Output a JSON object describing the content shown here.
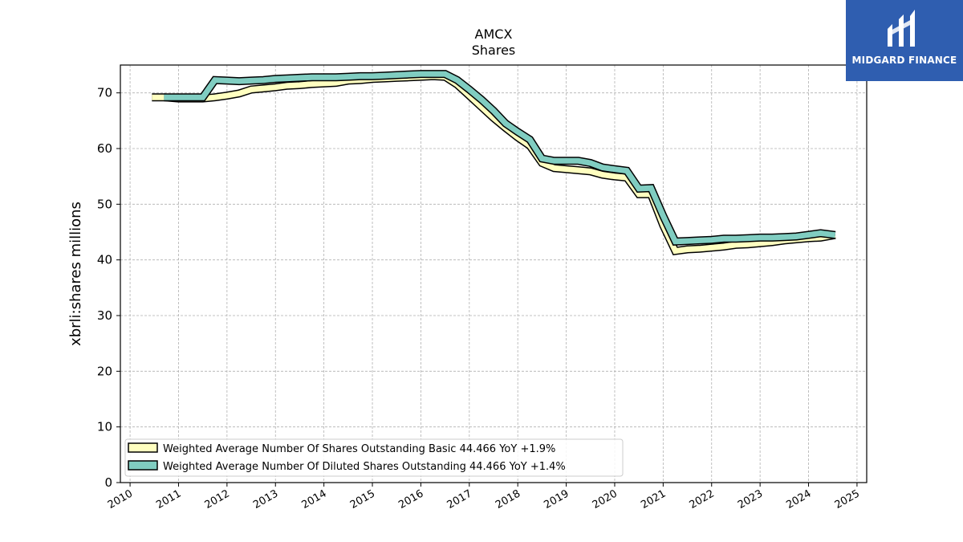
{
  "logo": {
    "text": "MIDGARD FINANCE"
  },
  "chart_data": {
    "type": "line",
    "title": "AMCX",
    "subtitle": "Shares",
    "ylabel": "xbrli:shares millions",
    "xlabel": "",
    "xlim": [
      2009.8,
      2025.2
    ],
    "ylim": [
      0,
      75
    ],
    "xticks": [
      2010,
      2011,
      2012,
      2013,
      2014,
      2015,
      2016,
      2017,
      2018,
      2019,
      2020,
      2021,
      2022,
      2023,
      2024,
      2025
    ],
    "yticks": [
      0,
      10,
      20,
      30,
      40,
      50,
      60,
      70
    ],
    "grid": true,
    "legend_position": "lower-left",
    "series": [
      {
        "name": "Weighted Average Number Of Shares Outstanding Basic  44.466 YoY +1.9%",
        "color": "#ffffc0",
        "points": [
          [
            2010.45,
            69.2
          ],
          [
            2010.7,
            69.2
          ],
          [
            2011.0,
            69.0
          ],
          [
            2011.5,
            69.0
          ],
          [
            2011.75,
            69.2
          ],
          [
            2012.0,
            69.5
          ],
          [
            2012.25,
            69.9
          ],
          [
            2012.5,
            70.6
          ],
          [
            2012.75,
            70.8
          ],
          [
            2013.0,
            71.0
          ],
          [
            2013.25,
            71.3
          ],
          [
            2013.5,
            71.4
          ],
          [
            2013.75,
            71.6
          ],
          [
            2014.0,
            71.7
          ],
          [
            2014.25,
            71.8
          ],
          [
            2014.5,
            72.2
          ],
          [
            2014.75,
            72.3
          ],
          [
            2015.0,
            72.5
          ],
          [
            2015.25,
            72.6
          ],
          [
            2015.5,
            72.7
          ],
          [
            2015.75,
            72.8
          ],
          [
            2016.0,
            72.9
          ],
          [
            2016.25,
            73.0
          ],
          [
            2016.5,
            72.9
          ],
          [
            2016.75,
            71.5
          ],
          [
            2017.0,
            69.5
          ],
          [
            2017.25,
            67.5
          ],
          [
            2017.5,
            65.5
          ],
          [
            2017.75,
            63.7
          ],
          [
            2018.0,
            62.0
          ],
          [
            2018.25,
            60.5
          ],
          [
            2018.5,
            57.4
          ],
          [
            2018.75,
            56.5
          ],
          [
            2019.0,
            56.3
          ],
          [
            2019.25,
            56.1
          ],
          [
            2019.5,
            55.9
          ],
          [
            2019.75,
            55.3
          ],
          [
            2020.0,
            55.0
          ],
          [
            2020.25,
            54.8
          ],
          [
            2020.5,
            51.8
          ],
          [
            2020.75,
            51.8
          ],
          [
            2021.0,
            46.2
          ],
          [
            2021.25,
            41.6
          ],
          [
            2021.5,
            41.9
          ],
          [
            2021.75,
            42.0
          ],
          [
            2022.0,
            42.2
          ],
          [
            2022.25,
            42.4
          ],
          [
            2022.5,
            42.7
          ],
          [
            2022.75,
            42.8
          ],
          [
            2023.0,
            43.0
          ],
          [
            2023.25,
            43.2
          ],
          [
            2023.5,
            43.5
          ],
          [
            2023.75,
            43.7
          ],
          [
            2024.0,
            43.9
          ],
          [
            2024.25,
            44.0
          ],
          [
            2024.55,
            44.466
          ]
        ]
      },
      {
        "name": "Weighted Average Number Of Diluted Shares Outstanding  44.466 YoY +1.4%",
        "color": "#80cdc1",
        "points": [
          [
            2010.7,
            69.2
          ],
          [
            2011.0,
            69.2
          ],
          [
            2011.5,
            69.2
          ],
          [
            2011.75,
            72.3
          ],
          [
            2012.0,
            72.2
          ],
          [
            2012.25,
            72.1
          ],
          [
            2012.5,
            72.2
          ],
          [
            2012.75,
            72.3
          ],
          [
            2013.0,
            72.5
          ],
          [
            2013.25,
            72.6
          ],
          [
            2013.5,
            72.7
          ],
          [
            2013.75,
            72.8
          ],
          [
            2014.0,
            72.8
          ],
          [
            2014.25,
            72.8
          ],
          [
            2014.5,
            72.9
          ],
          [
            2014.75,
            73.0
          ],
          [
            2015.0,
            73.0
          ],
          [
            2015.25,
            73.1
          ],
          [
            2015.5,
            73.2
          ],
          [
            2015.75,
            73.3
          ],
          [
            2016.0,
            73.4
          ],
          [
            2016.25,
            73.4
          ],
          [
            2016.5,
            73.4
          ],
          [
            2016.75,
            72.3
          ],
          [
            2017.0,
            70.6
          ],
          [
            2017.25,
            68.8
          ],
          [
            2017.5,
            66.8
          ],
          [
            2017.75,
            64.5
          ],
          [
            2018.0,
            63.0
          ],
          [
            2018.25,
            61.6
          ],
          [
            2018.5,
            58.2
          ],
          [
            2018.75,
            57.8
          ],
          [
            2019.0,
            57.8
          ],
          [
            2019.25,
            57.8
          ],
          [
            2019.5,
            57.4
          ],
          [
            2019.75,
            56.6
          ],
          [
            2020.0,
            56.3
          ],
          [
            2020.25,
            56.0
          ],
          [
            2020.5,
            52.8
          ],
          [
            2020.75,
            52.9
          ],
          [
            2021.0,
            47.9
          ],
          [
            2021.25,
            43.3
          ],
          [
            2021.5,
            43.4
          ],
          [
            2021.75,
            43.5
          ],
          [
            2022.0,
            43.6
          ],
          [
            2022.25,
            43.8
          ],
          [
            2022.5,
            43.8
          ],
          [
            2022.75,
            43.9
          ],
          [
            2023.0,
            44.0
          ],
          [
            2023.25,
            44.0
          ],
          [
            2023.5,
            44.1
          ],
          [
            2023.75,
            44.2
          ],
          [
            2024.0,
            44.5
          ],
          [
            2024.25,
            44.8
          ],
          [
            2024.55,
            44.466
          ]
        ]
      }
    ]
  }
}
